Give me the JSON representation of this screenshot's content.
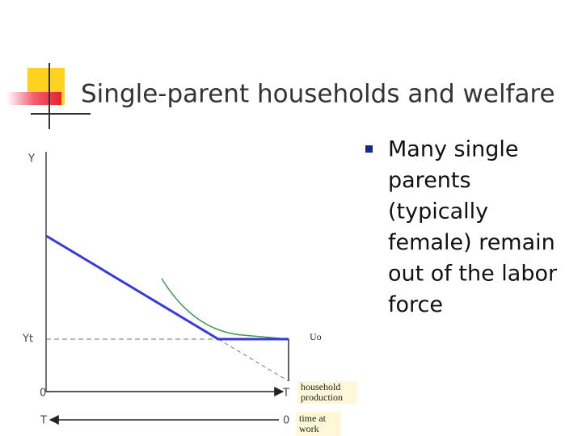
{
  "title": "Single-parent households and welfare",
  "bullet": {
    "lines": [
      "Many single",
      "parents",
      "(typically",
      "female) remain",
      "out of the labor",
      "force"
    ]
  },
  "diagram": {
    "y_axis_label": "Y",
    "yt_label": "Yt",
    "curve_label": "Uo",
    "household_axis": {
      "start": "0",
      "end": "T",
      "label_lines": [
        "household",
        "production"
      ]
    },
    "work_axis": {
      "start": "T",
      "end": "0",
      "label_lines": [
        "time at",
        "work"
      ]
    }
  }
}
